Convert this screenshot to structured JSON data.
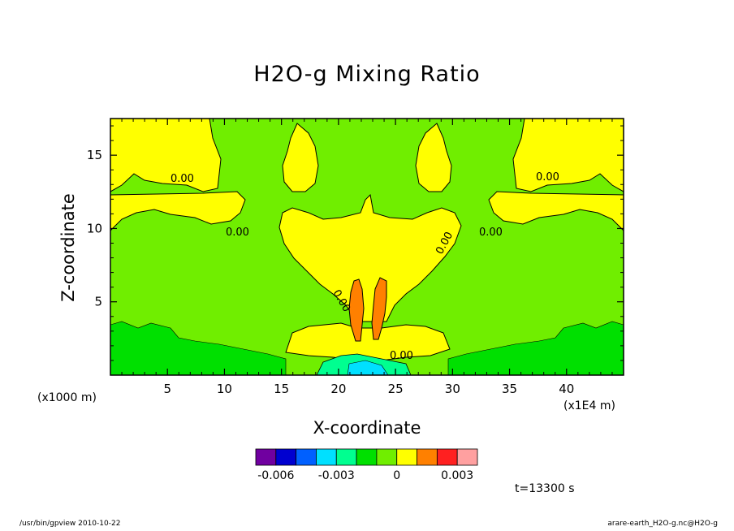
{
  "chart_data": {
    "type": "contour",
    "title": "H2O-g Mixing Ratio",
    "xlabel": "X-coordinate",
    "ylabel": "Z-coordinate",
    "x_unit_note": "(x1000 m)",
    "x_unit_note2": "(x1E4 m)",
    "xlim": [
      0,
      45
    ],
    "ylim": [
      0,
      17.5
    ],
    "x_ticks": [
      5,
      10,
      15,
      20,
      25,
      30,
      35,
      40
    ],
    "y_ticks": [
      5,
      10,
      15
    ],
    "contour_labels": [
      "0.00",
      "0.00",
      "0.00",
      "0.00",
      "0.00",
      "0.00",
      "0.00"
    ],
    "colorbar": {
      "colors": [
        "#7000a0",
        "#0000d0",
        "#0060ff",
        "#00e0ff",
        "#00ff90",
        "#00e000",
        "#70ee00",
        "#ffff00",
        "#ff8000",
        "#ff2020",
        "#ffa0a0"
      ],
      "tick_labels": [
        "-0.006",
        "-0.003",
        "0",
        "0.003"
      ]
    },
    "time": "t=13300 s"
  },
  "footer": {
    "left": "/usr/bin/gpview  2010-10-22",
    "right": "arare-earth_H2O-g.nc@H2O-g"
  }
}
